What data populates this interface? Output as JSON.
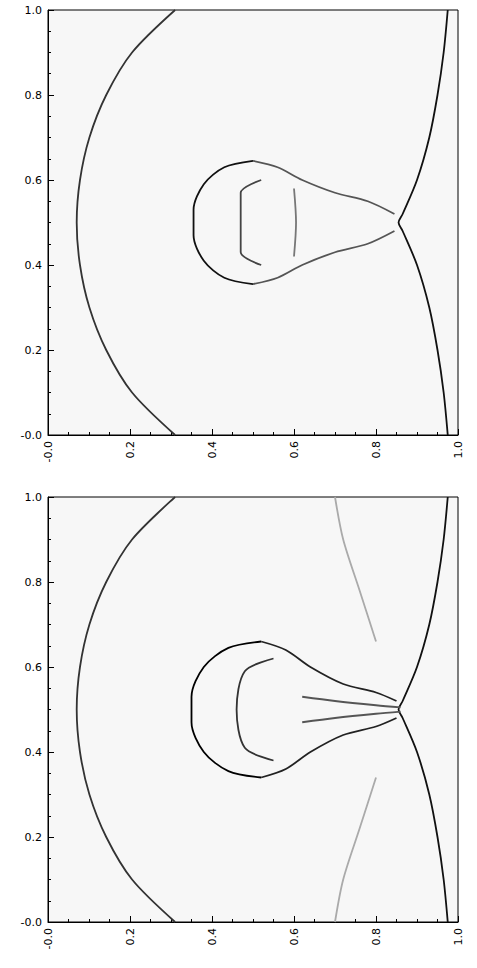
{
  "chart_data": [
    {
      "type": "line",
      "xlim": [
        0,
        1
      ],
      "ylim": [
        0,
        1
      ],
      "xticks": [
        {
          "value": 0,
          "label": "-0.0"
        },
        0.2,
        0.4,
        0.6,
        0.8,
        {
          "value": 1,
          "label": "1.0"
        }
      ],
      "yticks": [
        {
          "value": 0,
          "label": "-0.0"
        },
        0.2,
        0.4,
        0.6,
        0.8,
        {
          "value": 1,
          "label": "1.0"
        }
      ],
      "grid": false,
      "series": [
        {
          "color": "#333333",
          "values": [
            [
              0.31,
              0
            ],
            [
              0.205,
              0.1
            ],
            [
              0.142,
              0.2
            ],
            [
              0.101,
              0.3
            ],
            [
              0.078,
              0.4
            ],
            [
              0.07,
              0.5
            ],
            [
              0.078,
              0.6
            ],
            [
              0.101,
              0.7
            ],
            [
              0.142,
              0.8
            ],
            [
              0.205,
              0.9
            ],
            [
              0.31,
              1.0
            ]
          ]
        },
        {
          "color": "#111111",
          "values": [
            [
              0.975,
              0
            ],
            [
              0.965,
              0.1
            ],
            [
              0.95,
              0.2
            ],
            [
              0.93,
              0.3
            ],
            [
              0.9,
              0.4
            ],
            [
              0.865,
              0.48
            ],
            [
              0.855,
              0.5
            ],
            [
              0.865,
              0.52
            ],
            [
              0.9,
              0.6
            ],
            [
              0.93,
              0.7
            ],
            [
              0.95,
              0.8
            ],
            [
              0.965,
              0.9
            ],
            [
              0.975,
              1.0
            ]
          ]
        },
        {
          "color": "#111111",
          "values": [
            [
              0.5,
              0.645
            ],
            [
              0.43,
              0.63
            ],
            [
              0.38,
              0.59
            ],
            [
              0.355,
              0.53
            ],
            [
              0.355,
              0.47
            ],
            [
              0.38,
              0.41
            ],
            [
              0.43,
              0.37
            ],
            [
              0.5,
              0.355
            ]
          ]
        },
        {
          "color": "#444444",
          "values": [
            [
              0.52,
              0.6
            ],
            [
              0.47,
              0.57
            ],
            [
              0.47,
              0.5
            ],
            [
              0.47,
              0.43
            ],
            [
              0.52,
              0.4
            ]
          ]
        },
        {
          "color": "#555555",
          "values": [
            [
              0.5,
              0.645
            ],
            [
              0.56,
              0.63
            ],
            [
              0.62,
              0.6
            ],
            [
              0.7,
              0.57
            ],
            [
              0.78,
              0.55
            ],
            [
              0.845,
              0.52
            ]
          ]
        },
        {
          "color": "#555555",
          "values": [
            [
              0.5,
              0.355
            ],
            [
              0.56,
              0.37
            ],
            [
              0.62,
              0.4
            ],
            [
              0.7,
              0.43
            ],
            [
              0.78,
              0.45
            ],
            [
              0.845,
              0.48
            ]
          ]
        },
        {
          "color": "#777777",
          "values": [
            [
              0.6,
              0.42
            ],
            [
              0.605,
              0.5
            ],
            [
              0.6,
              0.58
            ]
          ]
        }
      ]
    },
    {
      "type": "line",
      "xlim": [
        0,
        1
      ],
      "ylim": [
        0,
        1
      ],
      "xticks": [
        {
          "value": 0,
          "label": "-0.0"
        },
        0.2,
        0.4,
        0.6,
        0.8,
        {
          "value": 1,
          "label": "1.0"
        }
      ],
      "yticks": [
        {
          "value": 0,
          "label": "-0.0"
        },
        0.2,
        0.4,
        0.6,
        0.8,
        {
          "value": 1,
          "label": "1.0"
        }
      ],
      "grid": false,
      "series": [
        {
          "color": "#333333",
          "values": [
            [
              0.31,
              0
            ],
            [
              0.205,
              0.1
            ],
            [
              0.142,
              0.2
            ],
            [
              0.101,
              0.3
            ],
            [
              0.078,
              0.4
            ],
            [
              0.07,
              0.5
            ],
            [
              0.078,
              0.6
            ],
            [
              0.101,
              0.7
            ],
            [
              0.142,
              0.8
            ],
            [
              0.205,
              0.9
            ],
            [
              0.31,
              1.0
            ]
          ]
        },
        {
          "color": "#111111",
          "values": [
            [
              0.975,
              0
            ],
            [
              0.965,
              0.1
            ],
            [
              0.95,
              0.2
            ],
            [
              0.93,
              0.3
            ],
            [
              0.9,
              0.4
            ],
            [
              0.865,
              0.48
            ],
            [
              0.855,
              0.5
            ],
            [
              0.865,
              0.52
            ],
            [
              0.9,
              0.6
            ],
            [
              0.93,
              0.7
            ],
            [
              0.95,
              0.8
            ],
            [
              0.965,
              0.9
            ],
            [
              0.975,
              1.0
            ]
          ]
        },
        {
          "color": "#000000",
          "values": [
            [
              0.52,
              0.66
            ],
            [
              0.44,
              0.645
            ],
            [
              0.38,
              0.6
            ],
            [
              0.35,
              0.53
            ],
            [
              0.35,
              0.47
            ],
            [
              0.38,
              0.4
            ],
            [
              0.44,
              0.355
            ],
            [
              0.52,
              0.34
            ]
          ]
        },
        {
          "color": "#333333",
          "values": [
            [
              0.55,
              0.62
            ],
            [
              0.48,
              0.59
            ],
            [
              0.46,
              0.5
            ],
            [
              0.48,
              0.41
            ],
            [
              0.55,
              0.38
            ]
          ]
        },
        {
          "color": "#222222",
          "values": [
            [
              0.52,
              0.66
            ],
            [
              0.58,
              0.64
            ],
            [
              0.64,
              0.6
            ],
            [
              0.72,
              0.56
            ],
            [
              0.8,
              0.54
            ],
            [
              0.85,
              0.52
            ]
          ]
        },
        {
          "color": "#222222",
          "values": [
            [
              0.52,
              0.34
            ],
            [
              0.58,
              0.36
            ],
            [
              0.64,
              0.4
            ],
            [
              0.72,
              0.44
            ],
            [
              0.8,
              0.46
            ],
            [
              0.85,
              0.48
            ]
          ]
        },
        {
          "color": "#555555",
          "values": [
            [
              0.62,
              0.53
            ],
            [
              0.7,
              0.52
            ],
            [
              0.8,
              0.51
            ],
            [
              0.86,
              0.505
            ]
          ]
        },
        {
          "color": "#555555",
          "values": [
            [
              0.62,
              0.47
            ],
            [
              0.7,
              0.48
            ],
            [
              0.8,
              0.49
            ],
            [
              0.86,
              0.495
            ]
          ]
        },
        {
          "color": "#aaaaaa",
          "values": [
            [
              0.7,
              1.0
            ],
            [
              0.72,
              0.9
            ],
            [
              0.76,
              0.78
            ],
            [
              0.8,
              0.66
            ]
          ]
        },
        {
          "color": "#aaaaaa",
          "values": [
            [
              0.7,
              0
            ],
            [
              0.72,
              0.1
            ],
            [
              0.76,
              0.22
            ],
            [
              0.8,
              0.34
            ]
          ]
        }
      ]
    }
  ]
}
